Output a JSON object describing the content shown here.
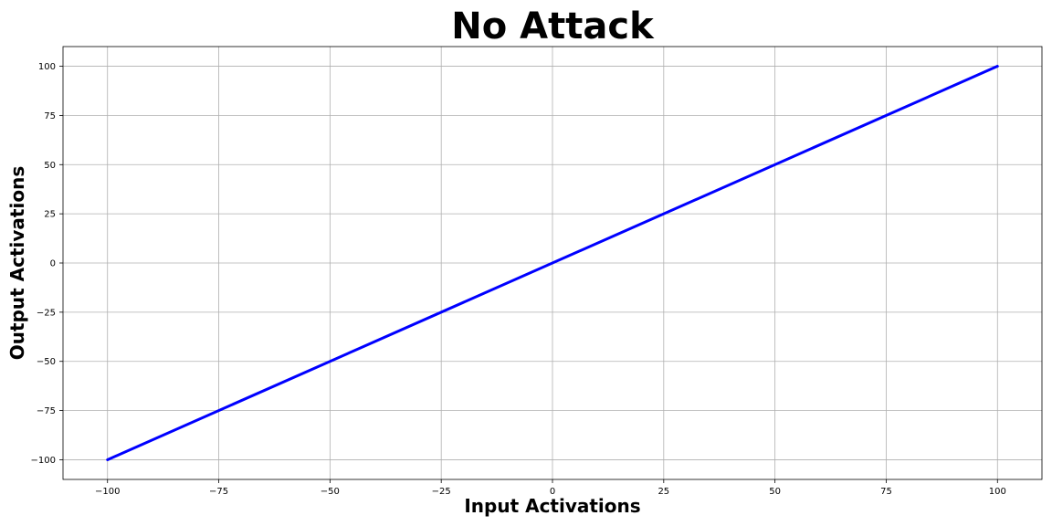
{
  "chart_data": {
    "type": "line",
    "title": "No Attack",
    "xlabel": "Input Activations",
    "ylabel": "Output Activations",
    "xlim": [
      -110,
      110
    ],
    "ylim": [
      -110,
      110
    ],
    "x_ticks": [
      -100,
      -75,
      -50,
      -25,
      0,
      25,
      50,
      75,
      100
    ],
    "y_ticks": [
      -100,
      -75,
      -50,
      -25,
      0,
      25,
      50,
      75,
      100
    ],
    "x_tick_labels": [
      "−100",
      "−75",
      "−50",
      "−25",
      "0",
      "25",
      "50",
      "75",
      "100"
    ],
    "y_tick_labels": [
      "−100",
      "−75",
      "−50",
      "−25",
      "0",
      "25",
      "50",
      "75",
      "100"
    ],
    "grid": true,
    "series": [
      {
        "color": "#0000ff",
        "x": [
          -100,
          100
        ],
        "y": [
          -100,
          100
        ]
      }
    ]
  }
}
